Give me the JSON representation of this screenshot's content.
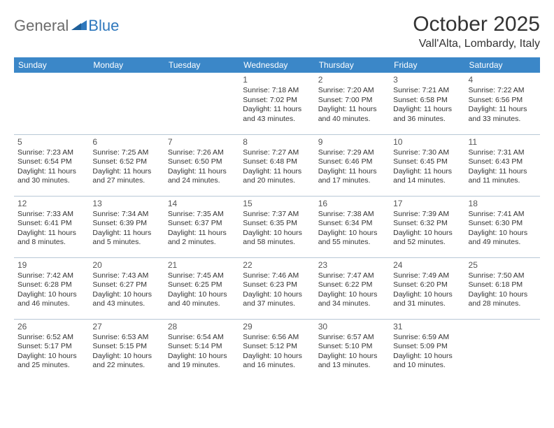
{
  "logo": {
    "general": "General",
    "blue": "Blue"
  },
  "title": "October 2025",
  "location": "Vall'Alta, Lombardy, Italy",
  "colors": {
    "header_bg": "#3b87c8",
    "header_text": "#ffffff",
    "border": "#b8c8d6",
    "logo_gray": "#6b6b6b",
    "logo_blue": "#2f78bd"
  },
  "day_headers": [
    "Sunday",
    "Monday",
    "Tuesday",
    "Wednesday",
    "Thursday",
    "Friday",
    "Saturday"
  ],
  "weeks": [
    [
      null,
      null,
      null,
      {
        "n": "1",
        "sr": "7:18 AM",
        "ss": "7:02 PM",
        "dl": "11 hours and 43 minutes."
      },
      {
        "n": "2",
        "sr": "7:20 AM",
        "ss": "7:00 PM",
        "dl": "11 hours and 40 minutes."
      },
      {
        "n": "3",
        "sr": "7:21 AM",
        "ss": "6:58 PM",
        "dl": "11 hours and 36 minutes."
      },
      {
        "n": "4",
        "sr": "7:22 AM",
        "ss": "6:56 PM",
        "dl": "11 hours and 33 minutes."
      }
    ],
    [
      {
        "n": "5",
        "sr": "7:23 AM",
        "ss": "6:54 PM",
        "dl": "11 hours and 30 minutes."
      },
      {
        "n": "6",
        "sr": "7:25 AM",
        "ss": "6:52 PM",
        "dl": "11 hours and 27 minutes."
      },
      {
        "n": "7",
        "sr": "7:26 AM",
        "ss": "6:50 PM",
        "dl": "11 hours and 24 minutes."
      },
      {
        "n": "8",
        "sr": "7:27 AM",
        "ss": "6:48 PM",
        "dl": "11 hours and 20 minutes."
      },
      {
        "n": "9",
        "sr": "7:29 AM",
        "ss": "6:46 PM",
        "dl": "11 hours and 17 minutes."
      },
      {
        "n": "10",
        "sr": "7:30 AM",
        "ss": "6:45 PM",
        "dl": "11 hours and 14 minutes."
      },
      {
        "n": "11",
        "sr": "7:31 AM",
        "ss": "6:43 PM",
        "dl": "11 hours and 11 minutes."
      }
    ],
    [
      {
        "n": "12",
        "sr": "7:33 AM",
        "ss": "6:41 PM",
        "dl": "11 hours and 8 minutes."
      },
      {
        "n": "13",
        "sr": "7:34 AM",
        "ss": "6:39 PM",
        "dl": "11 hours and 5 minutes."
      },
      {
        "n": "14",
        "sr": "7:35 AM",
        "ss": "6:37 PM",
        "dl": "11 hours and 2 minutes."
      },
      {
        "n": "15",
        "sr": "7:37 AM",
        "ss": "6:35 PM",
        "dl": "10 hours and 58 minutes."
      },
      {
        "n": "16",
        "sr": "7:38 AM",
        "ss": "6:34 PM",
        "dl": "10 hours and 55 minutes."
      },
      {
        "n": "17",
        "sr": "7:39 AM",
        "ss": "6:32 PM",
        "dl": "10 hours and 52 minutes."
      },
      {
        "n": "18",
        "sr": "7:41 AM",
        "ss": "6:30 PM",
        "dl": "10 hours and 49 minutes."
      }
    ],
    [
      {
        "n": "19",
        "sr": "7:42 AM",
        "ss": "6:28 PM",
        "dl": "10 hours and 46 minutes."
      },
      {
        "n": "20",
        "sr": "7:43 AM",
        "ss": "6:27 PM",
        "dl": "10 hours and 43 minutes."
      },
      {
        "n": "21",
        "sr": "7:45 AM",
        "ss": "6:25 PM",
        "dl": "10 hours and 40 minutes."
      },
      {
        "n": "22",
        "sr": "7:46 AM",
        "ss": "6:23 PM",
        "dl": "10 hours and 37 minutes."
      },
      {
        "n": "23",
        "sr": "7:47 AM",
        "ss": "6:22 PM",
        "dl": "10 hours and 34 minutes."
      },
      {
        "n": "24",
        "sr": "7:49 AM",
        "ss": "6:20 PM",
        "dl": "10 hours and 31 minutes."
      },
      {
        "n": "25",
        "sr": "7:50 AM",
        "ss": "6:18 PM",
        "dl": "10 hours and 28 minutes."
      }
    ],
    [
      {
        "n": "26",
        "sr": "6:52 AM",
        "ss": "5:17 PM",
        "dl": "10 hours and 25 minutes."
      },
      {
        "n": "27",
        "sr": "6:53 AM",
        "ss": "5:15 PM",
        "dl": "10 hours and 22 minutes."
      },
      {
        "n": "28",
        "sr": "6:54 AM",
        "ss": "5:14 PM",
        "dl": "10 hours and 19 minutes."
      },
      {
        "n": "29",
        "sr": "6:56 AM",
        "ss": "5:12 PM",
        "dl": "10 hours and 16 minutes."
      },
      {
        "n": "30",
        "sr": "6:57 AM",
        "ss": "5:10 PM",
        "dl": "10 hours and 13 minutes."
      },
      {
        "n": "31",
        "sr": "6:59 AM",
        "ss": "5:09 PM",
        "dl": "10 hours and 10 minutes."
      },
      null
    ]
  ],
  "labels": {
    "sunrise": "Sunrise:",
    "sunset": "Sunset:",
    "daylight": "Daylight:"
  }
}
